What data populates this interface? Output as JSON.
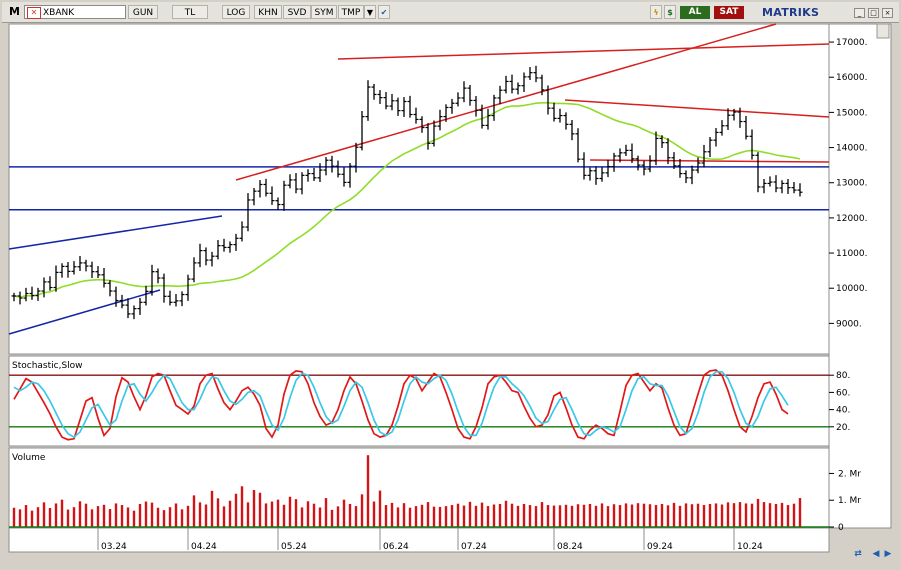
{
  "toolbar": {
    "logo": "M",
    "symbol": "XBANK",
    "buttons": [
      "GUN",
      "TL",
      "LOG",
      "KHN",
      "SVD",
      "SYM",
      "TMP"
    ],
    "buy_label": "AL",
    "sell_label": "SAT",
    "brand": "MATRIKS",
    "colors": {
      "buy": "#2d6b1e",
      "sell": "#a01010",
      "brand": "#1f3a8a"
    },
    "icons": [
      "dropdown-arrow-icon",
      "close-x-icon",
      "lightning-icon",
      "dollar-icon",
      "check-icon",
      "minimize-icon",
      "maximize-icon",
      "close-icon"
    ]
  },
  "chart_data": [
    {
      "type": "ohlc",
      "title": "",
      "price_axis_ticks": [
        17000,
        16000,
        15000,
        14000,
        13000,
        12000,
        11000,
        10000,
        9000
      ],
      "price_axis_labels": [
        "17000.",
        "16000.",
        "15000.",
        "14000.",
        "13000.",
        "12000.",
        "11000.",
        "10000.",
        "9000."
      ],
      "x_tick_labels": [
        "03.24",
        "04.24",
        "05.24",
        "06.24",
        "07.24",
        "08.24",
        "09.24",
        "10.24"
      ],
      "close": [
        9780,
        9720,
        9850,
        9790,
        9920,
        10180,
        10020,
        10450,
        10620,
        10480,
        10610,
        10720,
        10630,
        10470,
        10380,
        10140,
        9920,
        9650,
        9520,
        9270,
        9420,
        9600,
        9910,
        10470,
        10290,
        9770,
        9600,
        9640,
        9820,
        10260,
        10720,
        11070,
        10800,
        10910,
        11210,
        11160,
        11240,
        11420,
        11740,
        12510,
        12760,
        12950,
        12700,
        12490,
        12380,
        12930,
        13080,
        12820,
        13210,
        13260,
        13140,
        13360,
        13640,
        13470,
        13240,
        13010,
        13470,
        14010,
        14880,
        15720,
        15510,
        15420,
        15180,
        15330,
        15050,
        15310,
        14940,
        14800,
        14570,
        14120,
        14610,
        14880,
        15140,
        15260,
        15410,
        15690,
        15340,
        15060,
        14630,
        14910,
        15410,
        15630,
        15880,
        15660,
        15760,
        16010,
        16130,
        15980,
        15640,
        15120,
        14830,
        14910,
        14660,
        14390,
        13670,
        13210,
        13340,
        13120,
        13280,
        13460,
        13760,
        13850,
        13920,
        13680,
        13500,
        13390,
        13620,
        14260,
        14140,
        13710,
        13480,
        13260,
        13140,
        13360,
        13560,
        13880,
        14210,
        14430,
        14620,
        14920,
        15010,
        14740,
        14320,
        13780,
        12880,
        12980,
        13020,
        12850,
        12980,
        12860,
        12790,
        12730
      ],
      "ranges": {
        "price": [
          8300,
          17400
        ],
        "stochastic": [
          0,
          100
        ],
        "volume_mr": [
          0,
          2.8
        ]
      }
    },
    {
      "type": "line",
      "title": "Stochastic,Slow",
      "y_tick_labels": [
        "80.",
        "60.",
        "40.",
        "20."
      ],
      "reference_levels": [
        80,
        20
      ],
      "series": [
        {
          "values": [
            52,
            64,
            76,
            72,
            60,
            48,
            35,
            20,
            8,
            5,
            6,
            28,
            50,
            54,
            30,
            10,
            18,
            55,
            77,
            72,
            55,
            40,
            56,
            78,
            82,
            80,
            62,
            45,
            40,
            35,
            44,
            70,
            80,
            82,
            64,
            48,
            40,
            50,
            62,
            66,
            58,
            45,
            18,
            8,
            22,
            58,
            80,
            85,
            84,
            70,
            48,
            32,
            22,
            25,
            40,
            62,
            78,
            70,
            50,
            28,
            12,
            8,
            10,
            22,
            44,
            70,
            80,
            76,
            62,
            72,
            82,
            78,
            60,
            40,
            18,
            8,
            6,
            20,
            42,
            70,
            78,
            80,
            72,
            62,
            60,
            44,
            30,
            20,
            22,
            34,
            56,
            60,
            42,
            22,
            8,
            6,
            16,
            22,
            18,
            12,
            10,
            38,
            68,
            80,
            82,
            72,
            62,
            70,
            65,
            42,
            22,
            10,
            12,
            35,
            58,
            80,
            85,
            86,
            80,
            62,
            40,
            20,
            14,
            32,
            54,
            70,
            72,
            58,
            40,
            35
          ]
        },
        {
          "values": [
            66,
            62,
            66,
            72,
            70,
            62,
            50,
            36,
            22,
            12,
            8,
            14,
            28,
            42,
            46,
            34,
            22,
            28,
            50,
            68,
            70,
            58,
            50,
            60,
            72,
            80,
            76,
            62,
            48,
            40,
            40,
            52,
            68,
            78,
            76,
            62,
            50,
            46,
            52,
            60,
            62,
            56,
            38,
            22,
            16,
            30,
            54,
            74,
            82,
            80,
            66,
            48,
            32,
            24,
            28,
            44,
            62,
            72,
            66,
            48,
            28,
            14,
            10,
            14,
            28,
            50,
            70,
            78,
            72,
            70,
            76,
            80,
            74,
            58,
            38,
            20,
            10,
            10,
            24,
            46,
            66,
            78,
            78,
            70,
            64,
            56,
            44,
            30,
            24,
            26,
            40,
            52,
            54,
            40,
            24,
            12,
            10,
            16,
            20,
            18,
            14,
            20,
            40,
            62,
            76,
            78,
            70,
            68,
            68,
            56,
            38,
            20,
            12,
            18,
            36,
            60,
            78,
            84,
            84,
            76,
            60,
            40,
            24,
            20,
            32,
            50,
            64,
            66,
            56,
            45
          ]
        }
      ]
    },
    {
      "type": "bar",
      "title": "Volume",
      "y_tick_labels": [
        "2. Mr",
        "1. Mr",
        "0"
      ],
      "values": [
        0.72,
        0.66,
        0.82,
        0.61,
        0.74,
        0.92,
        0.71,
        0.88,
        1.02,
        0.65,
        0.74,
        0.96,
        0.87,
        0.66,
        0.78,
        0.83,
        0.67,
        0.88,
        0.82,
        0.73,
        0.61,
        0.86,
        0.95,
        0.91,
        0.72,
        0.63,
        0.74,
        0.88,
        0.66,
        0.79,
        1.18,
        0.92,
        0.84,
        1.35,
        1.07,
        0.77,
        0.98,
        1.24,
        1.52,
        0.92,
        1.38,
        1.28,
        0.88,
        0.95,
        1.02,
        0.83,
        1.13,
        1.04,
        0.73,
        0.96,
        0.87,
        0.73,
        1.08,
        0.64,
        0.77,
        1.02,
        0.86,
        0.78,
        1.22,
        2.68,
        0.95,
        1.36,
        0.82,
        0.9,
        0.73,
        0.89,
        0.72,
        0.78,
        0.83,
        0.93,
        0.76,
        0.75,
        0.78,
        0.82,
        0.87,
        0.8,
        0.94,
        0.79,
        0.91,
        0.78,
        0.84,
        0.86,
        0.98,
        0.87,
        0.79,
        0.86,
        0.82,
        0.78,
        0.93,
        0.82,
        0.8,
        0.81,
        0.83,
        0.79,
        0.85,
        0.83,
        0.86,
        0.79,
        0.88,
        0.78,
        0.85,
        0.82,
        0.88,
        0.84,
        0.89,
        0.87,
        0.85,
        0.82,
        0.86,
        0.81,
        0.9,
        0.79,
        0.88,
        0.85,
        0.87,
        0.82,
        0.86,
        0.88,
        0.84,
        0.92,
        0.89,
        0.93,
        0.88,
        0.87,
        1.05,
        0.93,
        0.89,
        0.86,
        0.9,
        0.82,
        0.87,
        1.08
      ]
    }
  ]
}
